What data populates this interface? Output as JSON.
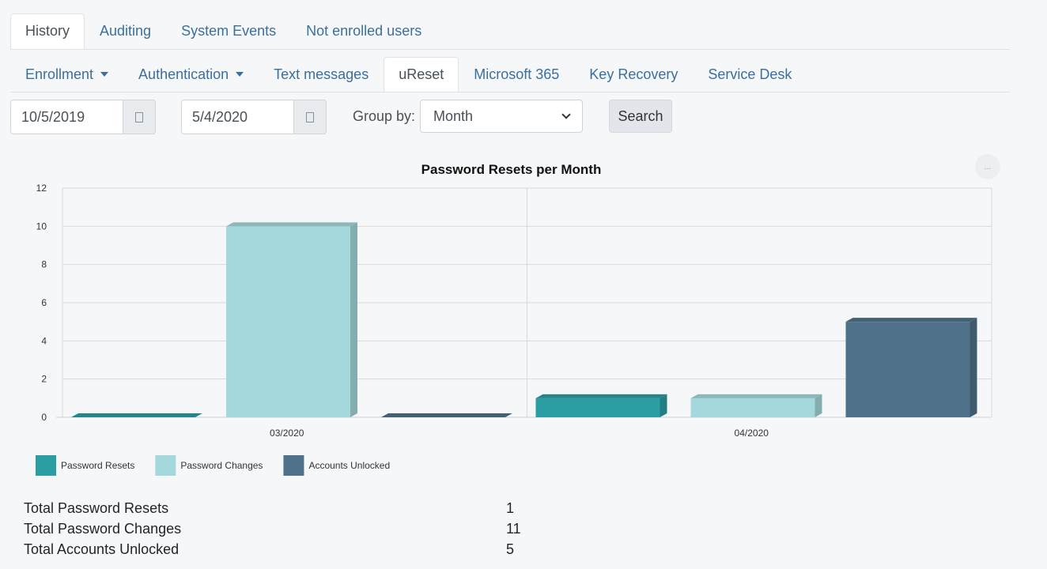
{
  "main_tabs": [
    "History",
    "Auditing",
    "System Events",
    "Not enrolled users"
  ],
  "sub_tabs": [
    "Enrollment",
    "Authentication",
    "Text messages",
    "uReset",
    "Microsoft 365",
    "Key Recovery",
    "Service Desk"
  ],
  "filters": {
    "start_date": "10/5/2019",
    "end_date": "5/4/2020",
    "group_by_label": "Group by:",
    "group_by_value": "Month",
    "search_label": "Search"
  },
  "chart_menu_label": "...",
  "chart_data": {
    "type": "bar",
    "title": "Password Resets per Month",
    "categories": [
      "03/2020",
      "04/2020"
    ],
    "series": [
      {
        "name": "Password Resets",
        "values": [
          0,
          1
        ],
        "color": "#2a9ea3"
      },
      {
        "name": "Password Changes",
        "values": [
          10,
          1
        ],
        "color": "#a5d8dc"
      },
      {
        "name": "Accounts Unlocked",
        "values": [
          0,
          5
        ],
        "color": "#4f728a"
      }
    ],
    "ylim": [
      0,
      12
    ],
    "yticks": [
      0,
      2,
      4,
      6,
      8,
      10,
      12
    ],
    "grid": true,
    "three_d": true,
    "legend_position": "bottom-left"
  },
  "totals": [
    {
      "label": "Total Password Resets",
      "value": "1"
    },
    {
      "label": "Total Password Changes",
      "value": "11"
    },
    {
      "label": "Total Accounts Unlocked",
      "value": "5"
    }
  ]
}
